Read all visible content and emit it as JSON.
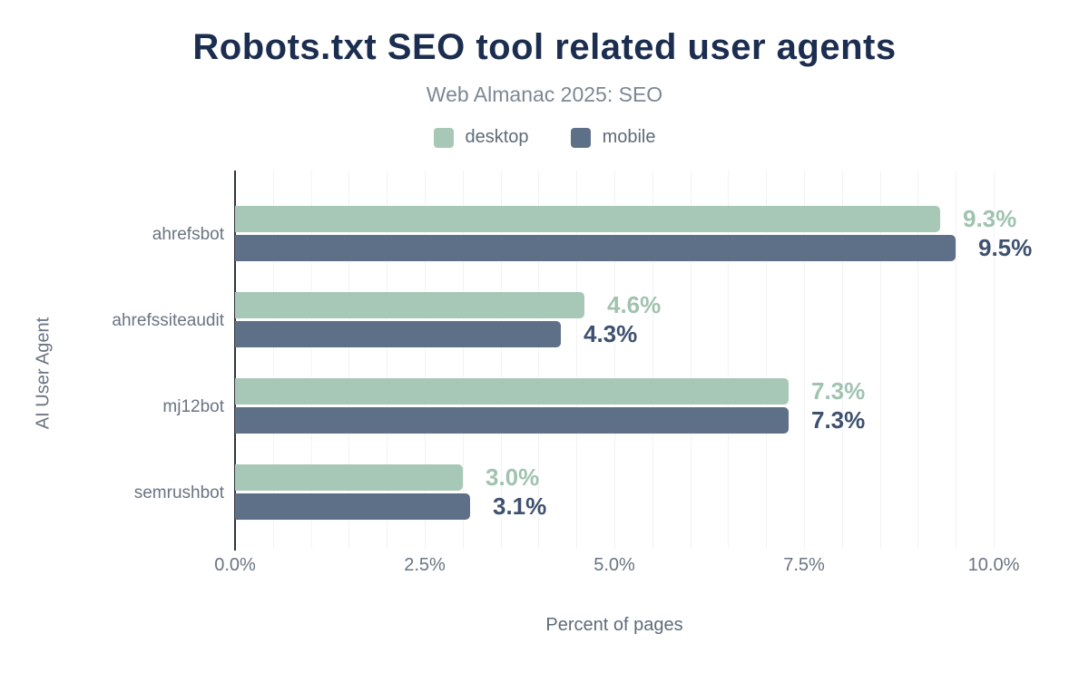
{
  "title": "Robots.txt SEO tool related user agents",
  "subtitle": "Web Almanac 2025: SEO",
  "legend": [
    {
      "label": "desktop",
      "color": "#a7c8b6"
    },
    {
      "label": "mobile",
      "color": "#5e7088"
    }
  ],
  "chart_data": {
    "type": "bar",
    "orientation": "horizontal",
    "title": "Robots.txt SEO tool related user agents",
    "subtitle": "Web Almanac 2025: SEO",
    "categories": [
      "ahrefsbot",
      "ahrefssiteaudit",
      "mj12bot",
      "semrushbot"
    ],
    "series": [
      {
        "name": "desktop",
        "color": "#a7c8b6",
        "label_color": "#a0c3b0",
        "values": [
          9.3,
          4.6,
          7.3,
          3.0
        ],
        "labels": [
          "9.3%",
          "4.6%",
          "7.3%",
          "3.0%"
        ]
      },
      {
        "name": "mobile",
        "color": "#5e7088",
        "label_color": "#3e5170",
        "values": [
          9.5,
          4.3,
          7.3,
          3.1
        ],
        "labels": [
          "9.5%",
          "4.3%",
          "7.3%",
          "3.1%"
        ]
      }
    ],
    "xlabel": "Percent of pages",
    "ylabel": "AI User Agent",
    "xlim": [
      0,
      10.5
    ],
    "xticks": [
      {
        "value": 0.0,
        "label": "0.0%"
      },
      {
        "value": 2.5,
        "label": "2.5%"
      },
      {
        "value": 5.0,
        "label": "5.0%"
      },
      {
        "value": 7.5,
        "label": "7.5%"
      },
      {
        "value": 10.0,
        "label": "10.0%"
      }
    ],
    "grid": true,
    "grid_minor_step": 0.5,
    "grid_color": "#f2f3f5",
    "axis_line_color": "#30353f",
    "legend_position": "top-center",
    "title_color": "#1c2e50",
    "subtitle_color": "#7d8894",
    "tick_label_color": "#6b7482"
  }
}
